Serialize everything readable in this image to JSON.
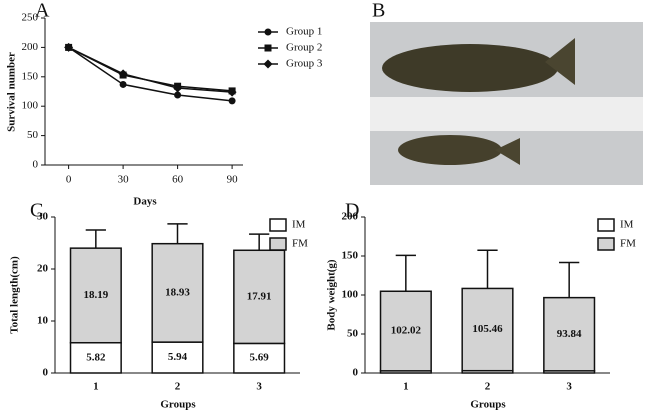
{
  "chart_data": [
    {
      "type": "line",
      "panel_label": "A",
      "x_label": "Days",
      "y_label": "Survival number",
      "x": [
        0,
        30,
        60,
        90
      ],
      "xlim": [
        -13,
        96
      ],
      "xticks": [
        0,
        30,
        60,
        90
      ],
      "ylim": [
        0,
        250
      ],
      "yticks": [
        0,
        50,
        100,
        150,
        200,
        250
      ],
      "series": [
        {
          "name": "Group 1",
          "color": "#111111",
          "marker": "circle",
          "values": [
            200,
            137,
            119,
            109
          ]
        },
        {
          "name": "Group 2",
          "color": "#111111",
          "marker": "square",
          "values": [
            200,
            153,
            134,
            126
          ]
        },
        {
          "name": "Group 3",
          "color": "#111111",
          "marker": "diamond",
          "values": [
            200,
            155,
            131,
            124
          ]
        }
      ]
    },
    {
      "type": "image",
      "panel_label": "B"
    },
    {
      "type": "stacked_bar",
      "panel_label": "C",
      "x_label": "Groups",
      "y_label": "Total length(cm)",
      "categories": [
        "1",
        "2",
        "3"
      ],
      "ylim": [
        0,
        30
      ],
      "yticks": [
        0,
        10,
        20,
        30
      ],
      "series": [
        {
          "name": "IM",
          "color": "#ffffff",
          "values": [
            5.82,
            5.94,
            5.69
          ],
          "errors": [
            0.5,
            0.6,
            0.4
          ]
        },
        {
          "name": "FM",
          "color": "#d3d3d3",
          "values": [
            18.19,
            18.93,
            17.91
          ],
          "errors": [
            3.5,
            3.8,
            3.1
          ]
        }
      ]
    },
    {
      "type": "stacked_bar",
      "panel_label": "D",
      "x_label": "Groups",
      "y_label": "Body weight(g)",
      "categories": [
        "1",
        "2",
        "3"
      ],
      "ylim": [
        0,
        200
      ],
      "yticks": [
        0,
        50,
        100,
        150,
        200
      ],
      "series": [
        {
          "name": "IM",
          "color": "#ffffff",
          "values": [
            2.77,
            2.95,
            2.79
          ],
          "errors": [
            1,
            1,
            1
          ]
        },
        {
          "name": "FM",
          "color": "#d3d3d3",
          "values": [
            102.02,
            105.46,
            93.84
          ],
          "errors": [
            46,
            49,
            45
          ]
        }
      ]
    }
  ]
}
